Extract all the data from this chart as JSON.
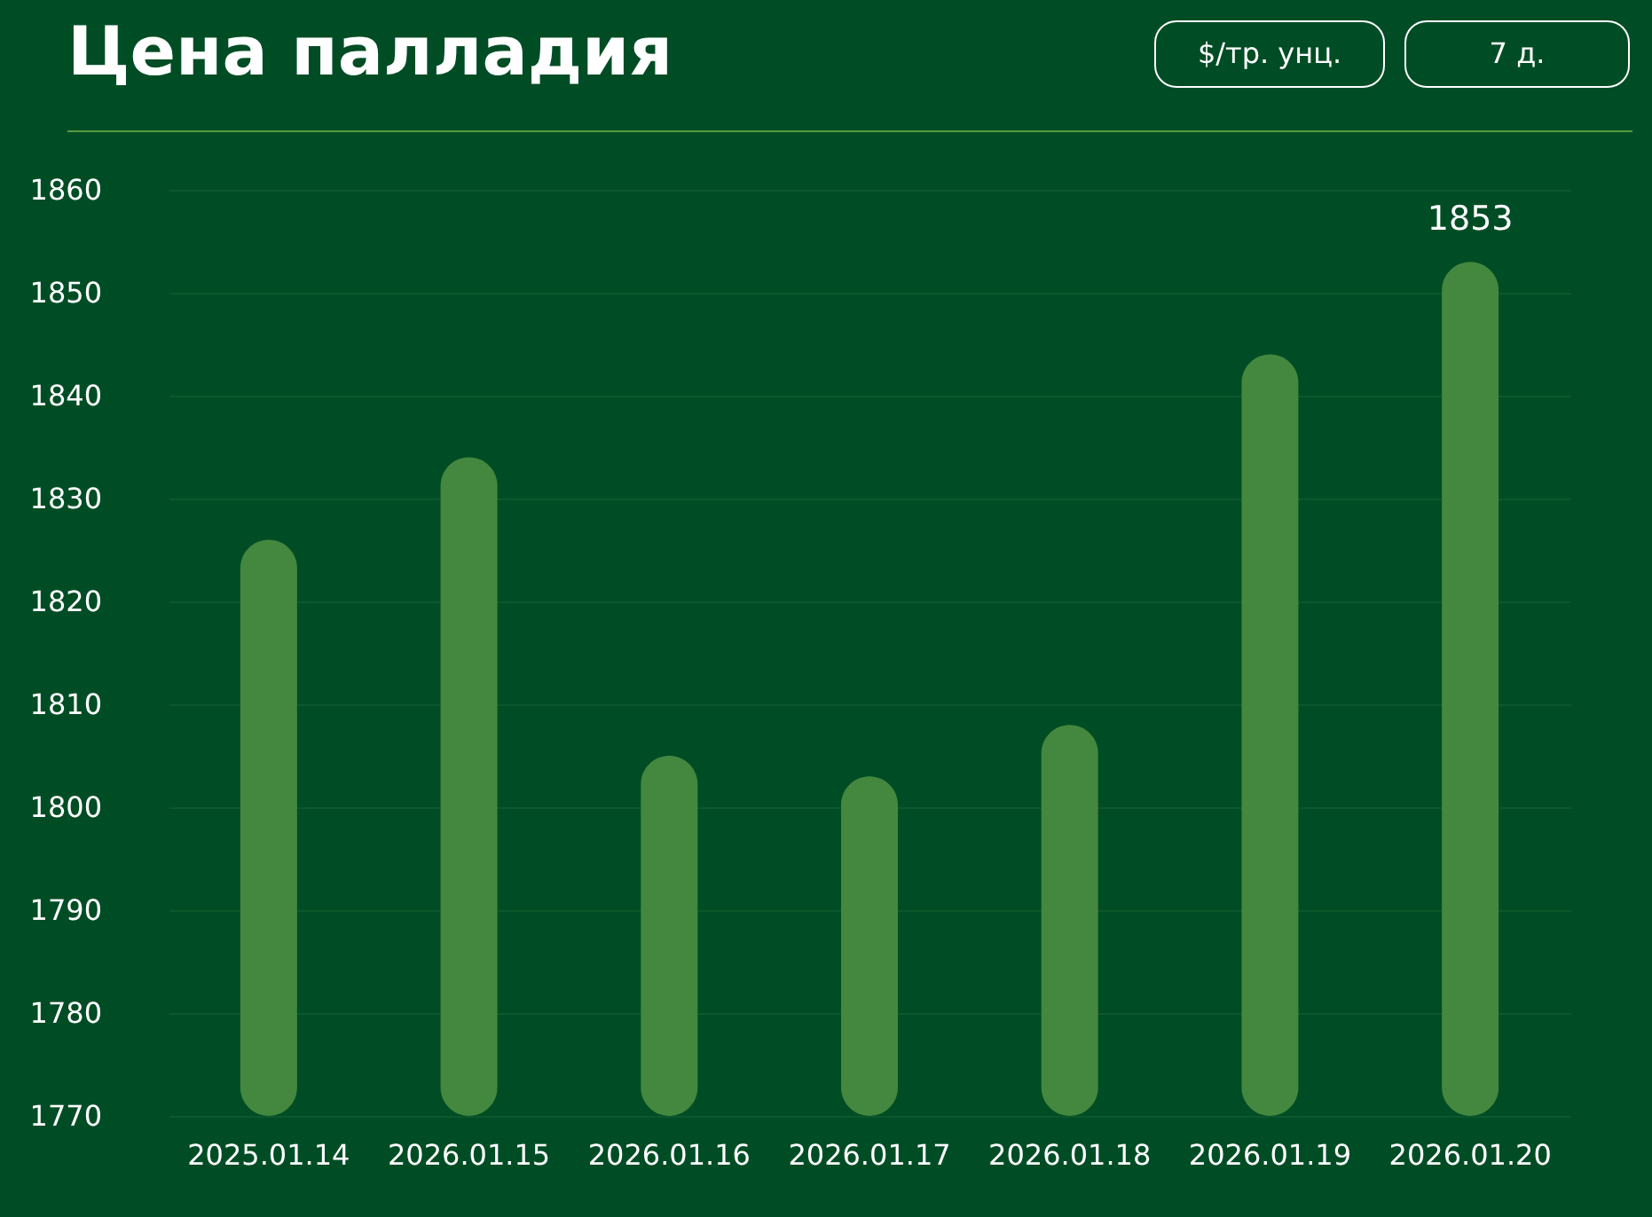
{
  "chart_data": {
    "type": "bar",
    "title": "Цена палладия",
    "annotations": [
      "$/тр. унц.",
      "7 д."
    ],
    "categories": [
      "2025.01.14",
      "2026.01.15",
      "2026.01.16",
      "2026.01.17",
      "2026.01.18",
      "2026.01.19",
      "2026.01.20"
    ],
    "values": [
      1826,
      1834,
      1805,
      1803,
      1808,
      1844,
      1853
    ],
    "value_labels": [
      null,
      null,
      null,
      null,
      null,
      null,
      "1853"
    ],
    "color": "#43883e",
    "ylim": [
      1770,
      1860
    ],
    "yticks": [
      1770,
      1780,
      1790,
      1800,
      1810,
      1820,
      1830,
      1840,
      1850,
      1860
    ],
    "grid": "y"
  }
}
